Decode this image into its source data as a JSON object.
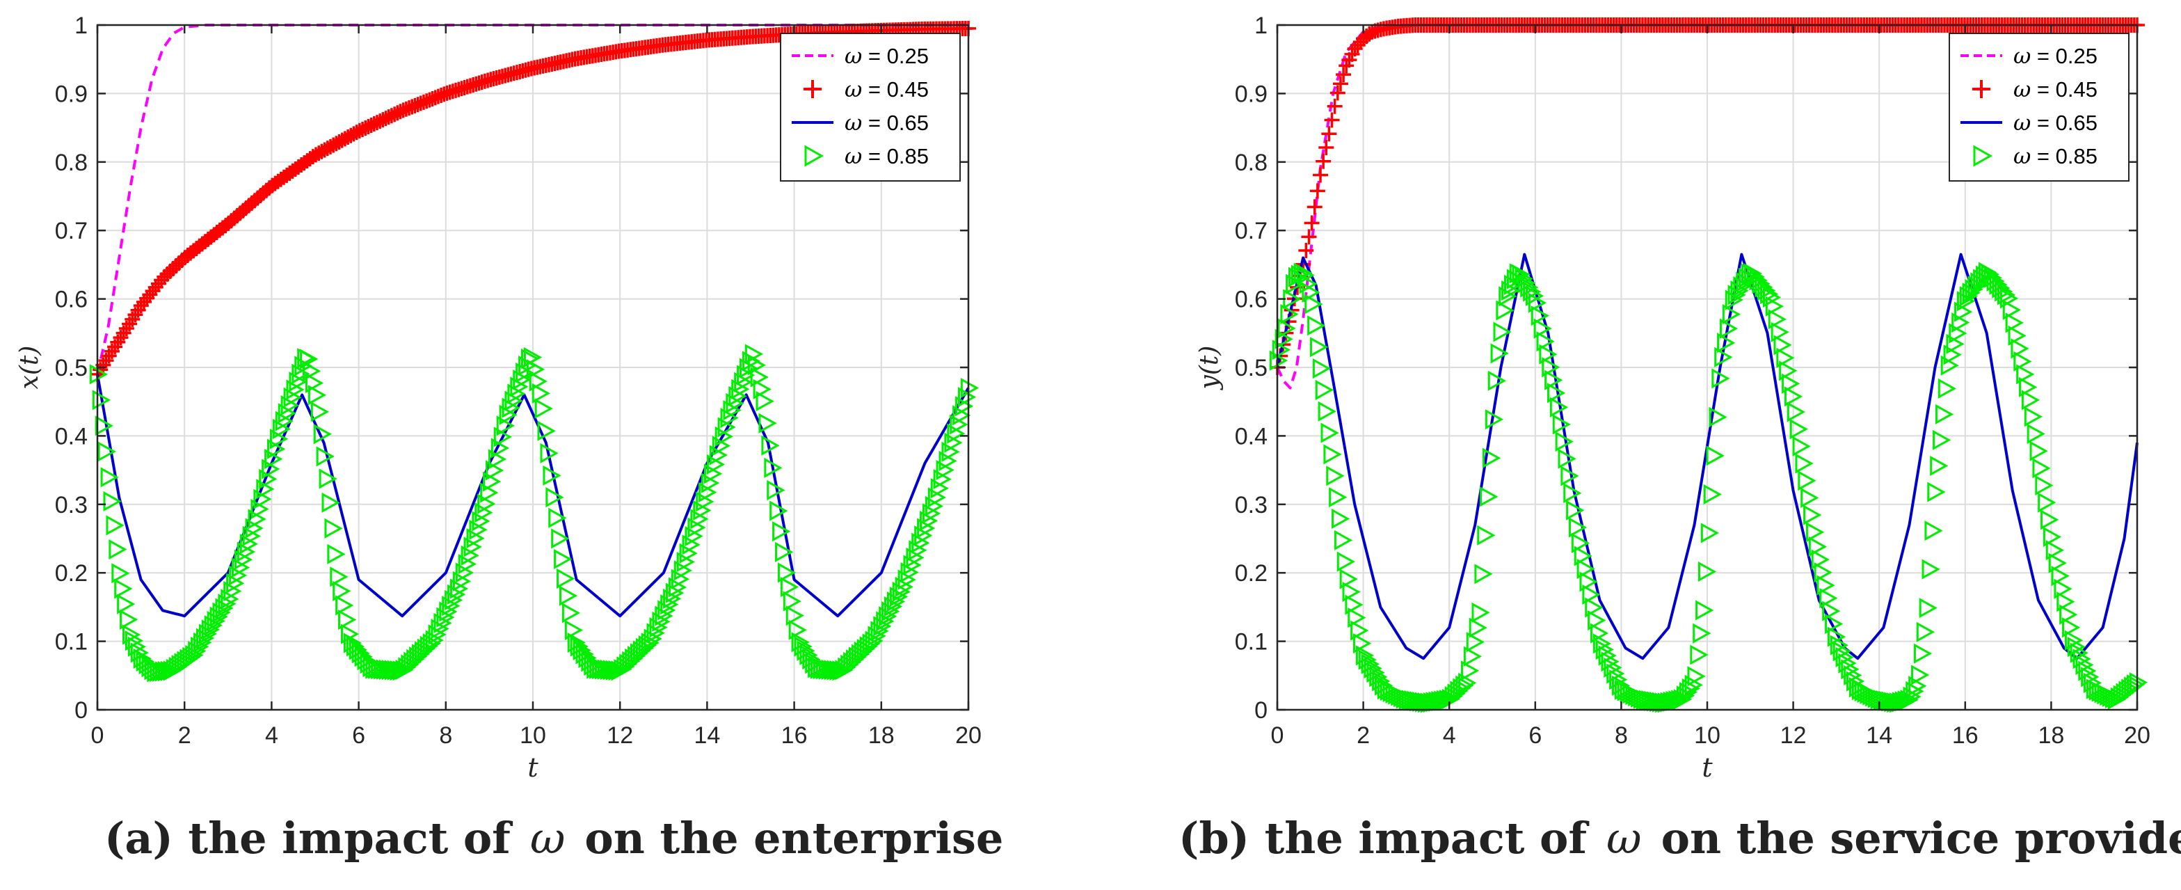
{
  "chart_data": [
    {
      "type": "line",
      "panel": "a",
      "xlabel": "t",
      "ylabel": "x(t)",
      "xlim": [
        0,
        20
      ],
      "ylim": [
        0,
        1
      ],
      "xticks": [
        0,
        2,
        4,
        6,
        8,
        10,
        12,
        14,
        16,
        18,
        20
      ],
      "yticks": [
        0,
        0.1,
        0.2,
        0.3,
        0.4,
        0.5,
        0.6,
        0.7,
        0.8,
        0.9,
        1
      ],
      "grid": true,
      "legend_position": "top-right",
      "series": [
        {
          "name": "ω = 0.25",
          "label_num": "0.25",
          "color": "#ff00ff",
          "style": "dashed",
          "marker": "none",
          "x": [
            0,
            0.25,
            0.5,
            0.75,
            1.0,
            1.25,
            1.5,
            1.75,
            2.0,
            2.5,
            3,
            20
          ],
          "y": [
            0.49,
            0.56,
            0.66,
            0.76,
            0.85,
            0.92,
            0.965,
            0.988,
            0.997,
            1.0,
            1.0,
            1.0
          ]
        },
        {
          "name": "ω = 0.45",
          "label_num": "0.45",
          "color": "#ff0000",
          "style": "none",
          "marker": "plus",
          "x": [
            0,
            0.5,
            1,
            1.5,
            2,
            3,
            4,
            5,
            6,
            7,
            8,
            9,
            10,
            11,
            12,
            13,
            14,
            15,
            16,
            17,
            18,
            19,
            20
          ],
          "y": [
            0.49,
            0.54,
            0.59,
            0.63,
            0.66,
            0.71,
            0.765,
            0.81,
            0.845,
            0.875,
            0.9,
            0.92,
            0.937,
            0.951,
            0.962,
            0.971,
            0.978,
            0.983,
            0.987,
            0.99,
            0.992,
            0.994,
            0.995
          ]
        },
        {
          "name": "ω = 0.65",
          "label_num": "0.65",
          "color": "#0000cc",
          "style": "solid",
          "marker": "none",
          "x": [
            0,
            0.5,
            1,
            1.5,
            2,
            3,
            4,
            4.7,
            5.2,
            6,
            7,
            8,
            9,
            9.8,
            10.3,
            11,
            12,
            13,
            14,
            14.9,
            15.4,
            16,
            17,
            18,
            19,
            20
          ],
          "y": [
            0.49,
            0.31,
            0.19,
            0.145,
            0.137,
            0.2,
            0.36,
            0.46,
            0.39,
            0.19,
            0.137,
            0.2,
            0.36,
            0.46,
            0.39,
            0.19,
            0.137,
            0.2,
            0.36,
            0.46,
            0.39,
            0.19,
            0.137,
            0.2,
            0.36,
            0.47
          ]
        },
        {
          "name": "ω = 0.85",
          "label_num": "0.85",
          "color": "#00ee00",
          "style": "none",
          "marker": "triangle",
          "x": [
            0,
            0.25,
            0.5,
            0.75,
            1.0,
            1.3,
            1.7,
            2.2,
            3,
            3.6,
            4.2,
            4.8,
            5.05,
            5.3,
            5.5,
            5.8,
            6.3,
            7,
            7.7,
            8.3,
            8.9,
            9.4,
            9.95,
            10.2,
            10.45,
            10.7,
            10.95,
            11.4,
            12,
            12.7,
            13.3,
            13.9,
            14.5,
            15.05,
            15.3,
            15.55,
            15.8,
            16.1,
            16.5,
            17.1,
            17.8,
            18.5,
            19.2,
            20
          ],
          "y": [
            0.49,
            0.34,
            0.2,
            0.11,
            0.075,
            0.055,
            0.057,
            0.08,
            0.16,
            0.27,
            0.41,
            0.52,
            0.45,
            0.32,
            0.2,
            0.1,
            0.06,
            0.057,
            0.1,
            0.18,
            0.3,
            0.43,
            0.52,
            0.45,
            0.32,
            0.2,
            0.1,
            0.06,
            0.057,
            0.1,
            0.18,
            0.3,
            0.43,
            0.52,
            0.45,
            0.32,
            0.2,
            0.1,
            0.06,
            0.057,
            0.1,
            0.18,
            0.3,
            0.47
          ]
        }
      ]
    },
    {
      "type": "line",
      "panel": "b",
      "xlabel": "t",
      "ylabel": "y(t)",
      "xlim": [
        0,
        20
      ],
      "ylim": [
        0,
        1
      ],
      "xticks": [
        0,
        2,
        4,
        6,
        8,
        10,
        12,
        14,
        16,
        18,
        20
      ],
      "yticks": [
        0,
        0.1,
        0.2,
        0.3,
        0.4,
        0.5,
        0.6,
        0.7,
        0.8,
        0.9,
        1
      ],
      "grid": true,
      "legend_position": "top-right",
      "series": [
        {
          "name": "ω = 0.25",
          "label_num": "0.25",
          "color": "#ff00ff",
          "style": "dashed",
          "marker": "none",
          "x": [
            0,
            0.15,
            0.3,
            0.45,
            0.6,
            0.8,
            1.0,
            1.3,
            1.6,
            2.0,
            2.5,
            3,
            20
          ],
          "y": [
            0.5,
            0.48,
            0.47,
            0.5,
            0.57,
            0.68,
            0.79,
            0.9,
            0.96,
            0.99,
            1.0,
            1.0,
            1.0
          ]
        },
        {
          "name": "ω = 0.45",
          "label_num": "0.45",
          "color": "#ff0000",
          "style": "none",
          "marker": "plus",
          "x": [
            0,
            0.2,
            0.4,
            0.6,
            0.8,
            1.0,
            1.2,
            1.4,
            1.6,
            1.8,
            2.0,
            2.2,
            2.5,
            2.8,
            3.2,
            4,
            5,
            6,
            8,
            10,
            12,
            14,
            16,
            18,
            20
          ],
          "y": [
            0.5,
            0.55,
            0.6,
            0.65,
            0.71,
            0.78,
            0.84,
            0.9,
            0.94,
            0.965,
            0.98,
            0.99,
            0.995,
            0.998,
            1.0,
            1.0,
            1.0,
            1.0,
            1.0,
            1.0,
            1.0,
            1.0,
            1.0,
            1.0,
            1.0
          ]
        },
        {
          "name": "ω = 0.65",
          "label_num": "0.65",
          "color": "#0000cc",
          "style": "solid",
          "marker": "none",
          "x": [
            0,
            0.3,
            0.6,
            0.9,
            1.3,
            1.8,
            2.4,
            3.0,
            3.4,
            4.0,
            4.6,
            5.2,
            5.75,
            6.3,
            6.9,
            7.5,
            8.1,
            8.5,
            9.1,
            9.7,
            10.3,
            10.8,
            11.4,
            12.0,
            12.6,
            13.2,
            13.5,
            14.1,
            14.7,
            15.3,
            15.9,
            16.5,
            17.1,
            17.7,
            18.3,
            18.6,
            19.2,
            19.7,
            20
          ],
          "y": [
            0.5,
            0.58,
            0.66,
            0.62,
            0.48,
            0.3,
            0.15,
            0.09,
            0.075,
            0.12,
            0.27,
            0.5,
            0.665,
            0.55,
            0.32,
            0.16,
            0.09,
            0.075,
            0.12,
            0.27,
            0.5,
            0.665,
            0.55,
            0.32,
            0.16,
            0.09,
            0.075,
            0.12,
            0.27,
            0.5,
            0.665,
            0.55,
            0.32,
            0.16,
            0.09,
            0.075,
            0.12,
            0.25,
            0.39
          ]
        },
        {
          "name": "ω = 0.85",
          "label_num": "0.85",
          "color": "#00ee00",
          "style": "none",
          "marker": "triangle",
          "x": [
            0,
            0.2,
            0.4,
            0.6,
            0.8,
            1.0,
            1.3,
            1.6,
            2.0,
            2.5,
            3.0,
            3.5,
            4.0,
            4.4,
            4.7,
            4.9,
            5.1,
            5.3,
            5.6,
            6.0,
            6.5,
            7.0,
            7.5,
            8.0,
            8.5,
            9.0,
            9.4,
            9.7,
            9.9,
            10.1,
            10.3,
            10.6,
            11.0,
            11.5,
            12.0,
            12.5,
            13.0,
            13.5,
            14.0,
            14.4,
            14.7,
            14.9,
            15.1,
            15.3,
            15.6,
            16.0,
            16.5,
            17.0,
            17.5,
            18.0,
            18.5,
            19.0,
            19.5,
            20
          ],
          "y": [
            0.51,
            0.56,
            0.63,
            0.64,
            0.6,
            0.5,
            0.35,
            0.2,
            0.08,
            0.03,
            0.015,
            0.01,
            0.015,
            0.04,
            0.14,
            0.32,
            0.5,
            0.6,
            0.64,
            0.6,
            0.45,
            0.25,
            0.1,
            0.03,
            0.015,
            0.01,
            0.015,
            0.04,
            0.14,
            0.32,
            0.5,
            0.6,
            0.64,
            0.6,
            0.45,
            0.25,
            0.1,
            0.03,
            0.015,
            0.01,
            0.015,
            0.04,
            0.14,
            0.32,
            0.5,
            0.6,
            0.64,
            0.6,
            0.45,
            0.25,
            0.1,
            0.03,
            0.015,
            0.04
          ]
        }
      ]
    }
  ],
  "captions": {
    "a": {
      "prefix": "(a) the impact of",
      "symbol": "ω",
      "suffix": "on the enterprise"
    },
    "b": {
      "prefix": "(b) the impact of",
      "symbol": "ω",
      "suffix": "on the service provider"
    }
  }
}
